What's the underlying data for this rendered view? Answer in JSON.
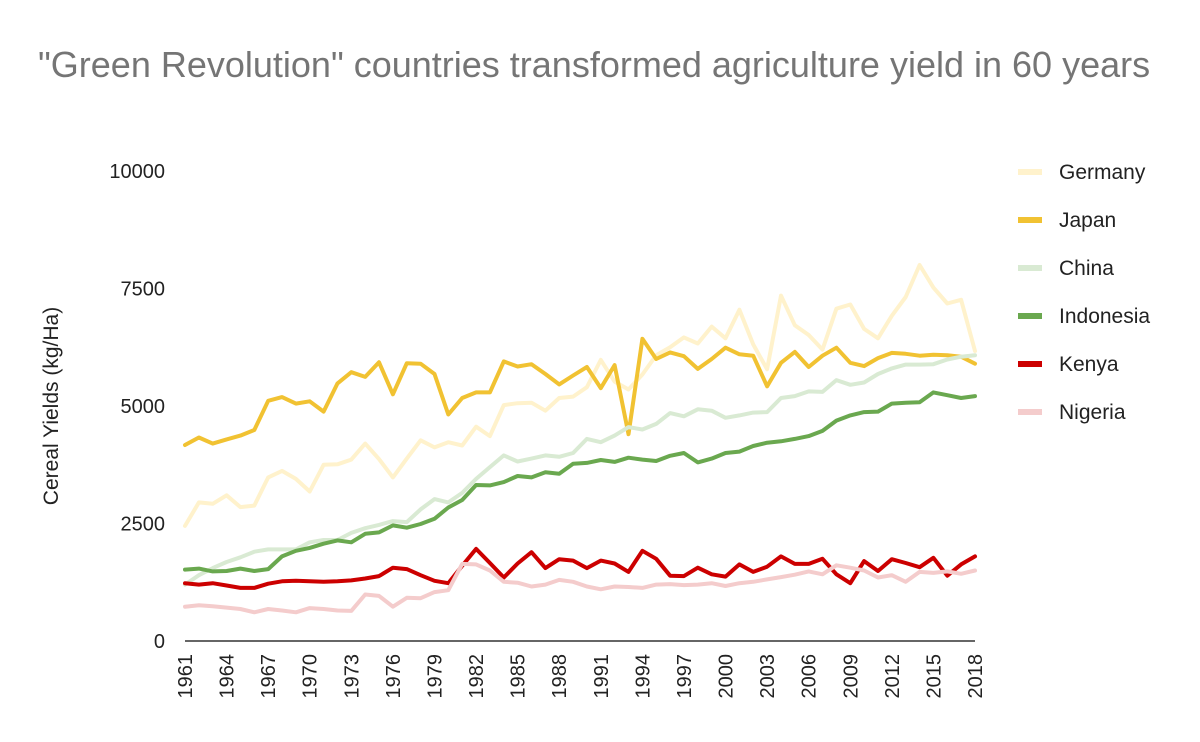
{
  "chart_data": {
    "type": "line",
    "title": "\"Green Revolution\" countries transformed agriculture yield in 60 years",
    "xlabel": "",
    "ylabel": "Cereal Yields (kg/Ha)",
    "xlim": [
      1961,
      2018
    ],
    "ylim": [
      0,
      10000
    ],
    "yticks": [
      "0",
      "2500",
      "5000",
      "7500",
      "10000"
    ],
    "xticks": [
      "1961",
      "1964",
      "1967",
      "1970",
      "1973",
      "1976",
      "1979",
      "1982",
      "1985",
      "1988",
      "1991",
      "1994",
      "1997",
      "2000",
      "2003",
      "2006",
      "2009",
      "2012",
      "2015",
      "2018"
    ],
    "grid": false,
    "legend_position": "right",
    "x": [
      1961,
      1962,
      1963,
      1964,
      1965,
      1966,
      1967,
      1968,
      1969,
      1970,
      1971,
      1972,
      1973,
      1974,
      1975,
      1976,
      1977,
      1978,
      1979,
      1980,
      1981,
      1982,
      1983,
      1984,
      1985,
      1986,
      1987,
      1988,
      1989,
      1990,
      1991,
      1992,
      1993,
      1994,
      1995,
      1996,
      1997,
      1998,
      1999,
      2000,
      2001,
      2002,
      2003,
      2004,
      2005,
      2006,
      2007,
      2008,
      2009,
      2010,
      2011,
      2012,
      2013,
      2014,
      2015,
      2016,
      2017,
      2018
    ],
    "series": [
      {
        "name": "Germany",
        "color": "#fff2cc",
        "width": 4,
        "values": [
          2450,
          2950,
          2920,
          3100,
          2850,
          2880,
          3480,
          3620,
          3450,
          3180,
          3750,
          3760,
          3860,
          4200,
          3870,
          3480,
          3880,
          4270,
          4120,
          4230,
          4160,
          4560,
          4360,
          5020,
          5060,
          5070,
          4900,
          5170,
          5200,
          5400,
          5980,
          5520,
          5350,
          5670,
          6080,
          6250,
          6460,
          6330,
          6690,
          6440,
          7050,
          6310,
          5780,
          7350,
          6720,
          6510,
          6200,
          7070,
          7160,
          6640,
          6440,
          6920,
          7320,
          8000,
          7520,
          7180,
          7260,
          6170
        ]
      },
      {
        "name": "Japan",
        "color": "#f1c232",
        "width": 4,
        "values": [
          4170,
          4330,
          4200,
          4290,
          4370,
          4490,
          5110,
          5190,
          5050,
          5100,
          4880,
          5480,
          5720,
          5620,
          5930,
          5250,
          5910,
          5900,
          5680,
          4820,
          5170,
          5290,
          5290,
          5950,
          5840,
          5890,
          5680,
          5460,
          5650,
          5830,
          5380,
          5870,
          4400,
          6430,
          6000,
          6140,
          6060,
          5790,
          6000,
          6240,
          6100,
          6070,
          5420,
          5920,
          6150,
          5830,
          6070,
          6240,
          5920,
          5850,
          6020,
          6130,
          6110,
          6070,
          6090,
          6080,
          6050,
          5900
        ]
      },
      {
        "name": "China",
        "color": "#d9ead3",
        "width": 4,
        "values": [
          1200,
          1400,
          1550,
          1680,
          1780,
          1900,
          1950,
          1950,
          1950,
          2100,
          2150,
          2150,
          2300,
          2400,
          2470,
          2550,
          2530,
          2800,
          3020,
          2950,
          3150,
          3450,
          3700,
          3950,
          3820,
          3880,
          3950,
          3920,
          4000,
          4300,
          4230,
          4370,
          4550,
          4500,
          4620,
          4850,
          4780,
          4930,
          4900,
          4750,
          4800,
          4860,
          4870,
          5170,
          5210,
          5310,
          5300,
          5550,
          5450,
          5500,
          5680,
          5800,
          5880,
          5880,
          5890,
          5990,
          6050,
          6080
        ]
      },
      {
        "name": "Indonesia",
        "color": "#6aa84f",
        "width": 4,
        "values": [
          1520,
          1540,
          1480,
          1490,
          1540,
          1490,
          1530,
          1800,
          1920,
          1980,
          2070,
          2140,
          2100,
          2280,
          2310,
          2460,
          2410,
          2490,
          2600,
          2840,
          3000,
          3320,
          3310,
          3380,
          3510,
          3480,
          3590,
          3560,
          3770,
          3790,
          3850,
          3810,
          3900,
          3860,
          3830,
          3940,
          4000,
          3800,
          3880,
          4000,
          4030,
          4150,
          4220,
          4250,
          4300,
          4360,
          4470,
          4690,
          4800,
          4870,
          4880,
          5050,
          5070,
          5080,
          5290,
          5230,
          5170,
          5210
        ]
      },
      {
        "name": "Kenya",
        "color": "#cc0000",
        "width": 4,
        "values": [
          1230,
          1200,
          1230,
          1180,
          1130,
          1130,
          1220,
          1270,
          1280,
          1270,
          1260,
          1270,
          1290,
          1330,
          1380,
          1560,
          1530,
          1400,
          1280,
          1230,
          1600,
          1960,
          1660,
          1350,
          1650,
          1890,
          1550,
          1740,
          1710,
          1550,
          1710,
          1650,
          1470,
          1920,
          1750,
          1390,
          1380,
          1560,
          1420,
          1370,
          1630,
          1470,
          1580,
          1800,
          1640,
          1640,
          1750,
          1420,
          1230,
          1700,
          1490,
          1740,
          1660,
          1570,
          1770,
          1390,
          1630,
          1800
        ]
      },
      {
        "name": "Nigeria",
        "color": "#f4cccc",
        "width": 4,
        "values": [
          730,
          760,
          740,
          710,
          680,
          610,
          680,
          650,
          610,
          700,
          680,
          650,
          640,
          990,
          960,
          730,
          920,
          910,
          1040,
          1080,
          1640,
          1630,
          1500,
          1260,
          1240,
          1160,
          1200,
          1300,
          1260,
          1160,
          1100,
          1160,
          1150,
          1130,
          1200,
          1210,
          1190,
          1200,
          1230,
          1170,
          1230,
          1260,
          1310,
          1360,
          1410,
          1480,
          1420,
          1610,
          1560,
          1500,
          1350,
          1400,
          1260,
          1470,
          1450,
          1480,
          1430,
          1500
        ]
      }
    ]
  }
}
